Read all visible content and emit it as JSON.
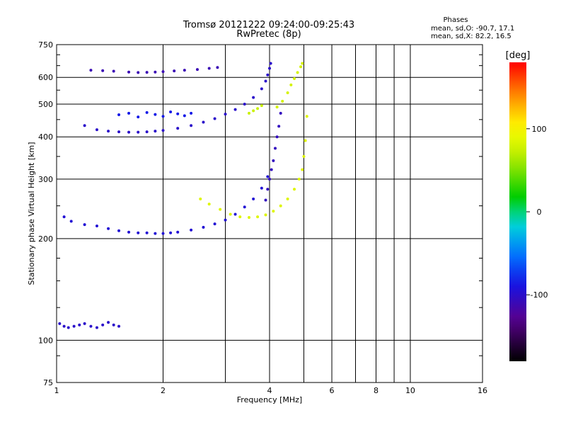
{
  "chart_data": {
    "type": "scatter",
    "title": "Tromsø 20121222 09:24:00-09:25:43",
    "subtitle": "RwPretec (8p)",
    "xlabel": "Frequency [MHz]",
    "ylabel": "Stationary phase Virtual Height [km]",
    "x_scale": "log",
    "y_scale": "log",
    "xlim": [
      1,
      16
    ],
    "ylim": [
      75,
      750
    ],
    "x_ticks": [
      1,
      2,
      4,
      6,
      8,
      10,
      16
    ],
    "y_ticks": [
      75,
      100,
      200,
      300,
      400,
      500,
      600,
      750
    ],
    "x_tick_labels": [
      "1",
      "2",
      "4",
      "6",
      "8",
      "10",
      "16"
    ],
    "y_tick_labels": [
      "75",
      "100",
      "200",
      "300",
      "400",
      "500",
      "600",
      "750"
    ],
    "x_minor_lines": [
      3,
      5,
      7,
      9
    ],
    "y_minor_lines": [
      90,
      125,
      150,
      175,
      250,
      350,
      450,
      550,
      650,
      700
    ],
    "grid": true,
    "annotation": {
      "heading": "Phases",
      "line1": "mean, sd,O: -90.7, 17.1",
      "line2": "mean, sd,X:  82.2, 16.5"
    },
    "colorbar": {
      "label": "[deg]",
      "range": [
        -180,
        180
      ],
      "ticks": [
        100,
        0,
        -100
      ],
      "tick_labels": [
        "100",
        "0",
        "-100"
      ]
    },
    "series": [
      {
        "name": "O",
        "traces": [
          {
            "x": [
              1.05,
              1.1,
              1.2,
              1.3,
              1.4,
              1.5,
              1.6,
              1.7,
              1.8,
              1.9,
              2.0,
              2.1,
              2.2,
              2.4,
              2.6,
              2.8,
              3.0,
              3.2,
              3.4,
              3.6,
              3.8,
              3.95
            ],
            "y": [
              232,
              225,
              220,
              218,
              214,
              211,
              209,
              208,
              208,
              207,
              207,
              208,
              209,
              212,
              216,
              221,
              227,
              236,
              248,
              262,
              282,
              305
            ],
            "phase": -95
          },
          {
            "x": [
              3.9,
              3.95,
              4.0,
              4.05,
              4.1,
              4.15,
              4.2,
              4.25,
              4.3
            ],
            "y": [
              260,
              280,
              300,
              320,
              340,
              370,
              400,
              430,
              470
            ],
            "phase": -105
          },
          {
            "x": [
              1.2,
              1.3,
              1.4,
              1.5,
              1.6,
              1.7,
              1.8,
              1.9,
              2.0,
              2.2,
              2.4,
              2.6,
              2.8,
              3.0,
              3.2,
              3.4,
              3.6,
              3.8,
              3.9,
              3.95,
              4.0,
              4.03
            ],
            "y": [
              432,
              420,
              416,
              414,
              413,
              413,
              414,
              416,
              418,
              424,
              432,
              442,
              453,
              467,
              482,
              500,
              523,
              555,
              585,
              610,
              638,
              660
            ],
            "phase": -100
          },
          {
            "x": [
              1.25,
              1.35,
              1.45,
              1.6,
              1.7,
              1.8,
              1.9,
              2.0,
              2.15,
              2.3,
              2.5,
              2.7,
              2.85
            ],
            "y": [
              630,
              628,
              626,
              622,
              620,
              621,
              622,
              624,
              627,
              630,
              633,
              638,
              642
            ],
            "phase": -110
          },
          {
            "x": [
              1.02,
              1.05,
              1.08,
              1.12,
              1.16,
              1.2,
              1.25,
              1.3,
              1.35,
              1.4,
              1.45,
              1.5
            ],
            "y": [
              112,
              110,
              109,
              110,
              111,
              112,
              110,
              109,
              111,
              113,
              111,
              110
            ],
            "phase": -100
          },
          {
            "x": [
              1.5,
              1.6,
              1.7,
              1.8,
              1.9,
              2.0,
              2.1,
              2.2,
              2.3,
              2.4
            ],
            "y": [
              465,
              470,
              458,
              472,
              466,
              460,
              474,
              468,
              462,
              470
            ],
            "phase": -85
          }
        ]
      },
      {
        "name": "X",
        "traces": [
          {
            "x": [
              2.55,
              2.7,
              2.9,
              3.1,
              3.3,
              3.5,
              3.7,
              3.9,
              4.1,
              4.3,
              4.5,
              4.7,
              4.85,
              4.95,
              5.0,
              5.05,
              5.1
            ],
            "y": [
              262,
              253,
              244,
              236,
              232,
              231,
              232,
              235,
              241,
              250,
              262,
              280,
              300,
              320,
              350,
              390,
              460
            ],
            "phase": 85
          },
          {
            "x": [
              4.2,
              4.35,
              4.5,
              4.6,
              4.7,
              4.8,
              4.9,
              4.95
            ],
            "y": [
              490,
              510,
              540,
              570,
              595,
              620,
              645,
              660
            ],
            "phase": 80
          },
          {
            "x": [
              3.5,
              3.6,
              3.7,
              3.8
            ],
            "y": [
              470,
              478,
              485,
              495
            ],
            "phase": 75
          }
        ]
      }
    ]
  }
}
